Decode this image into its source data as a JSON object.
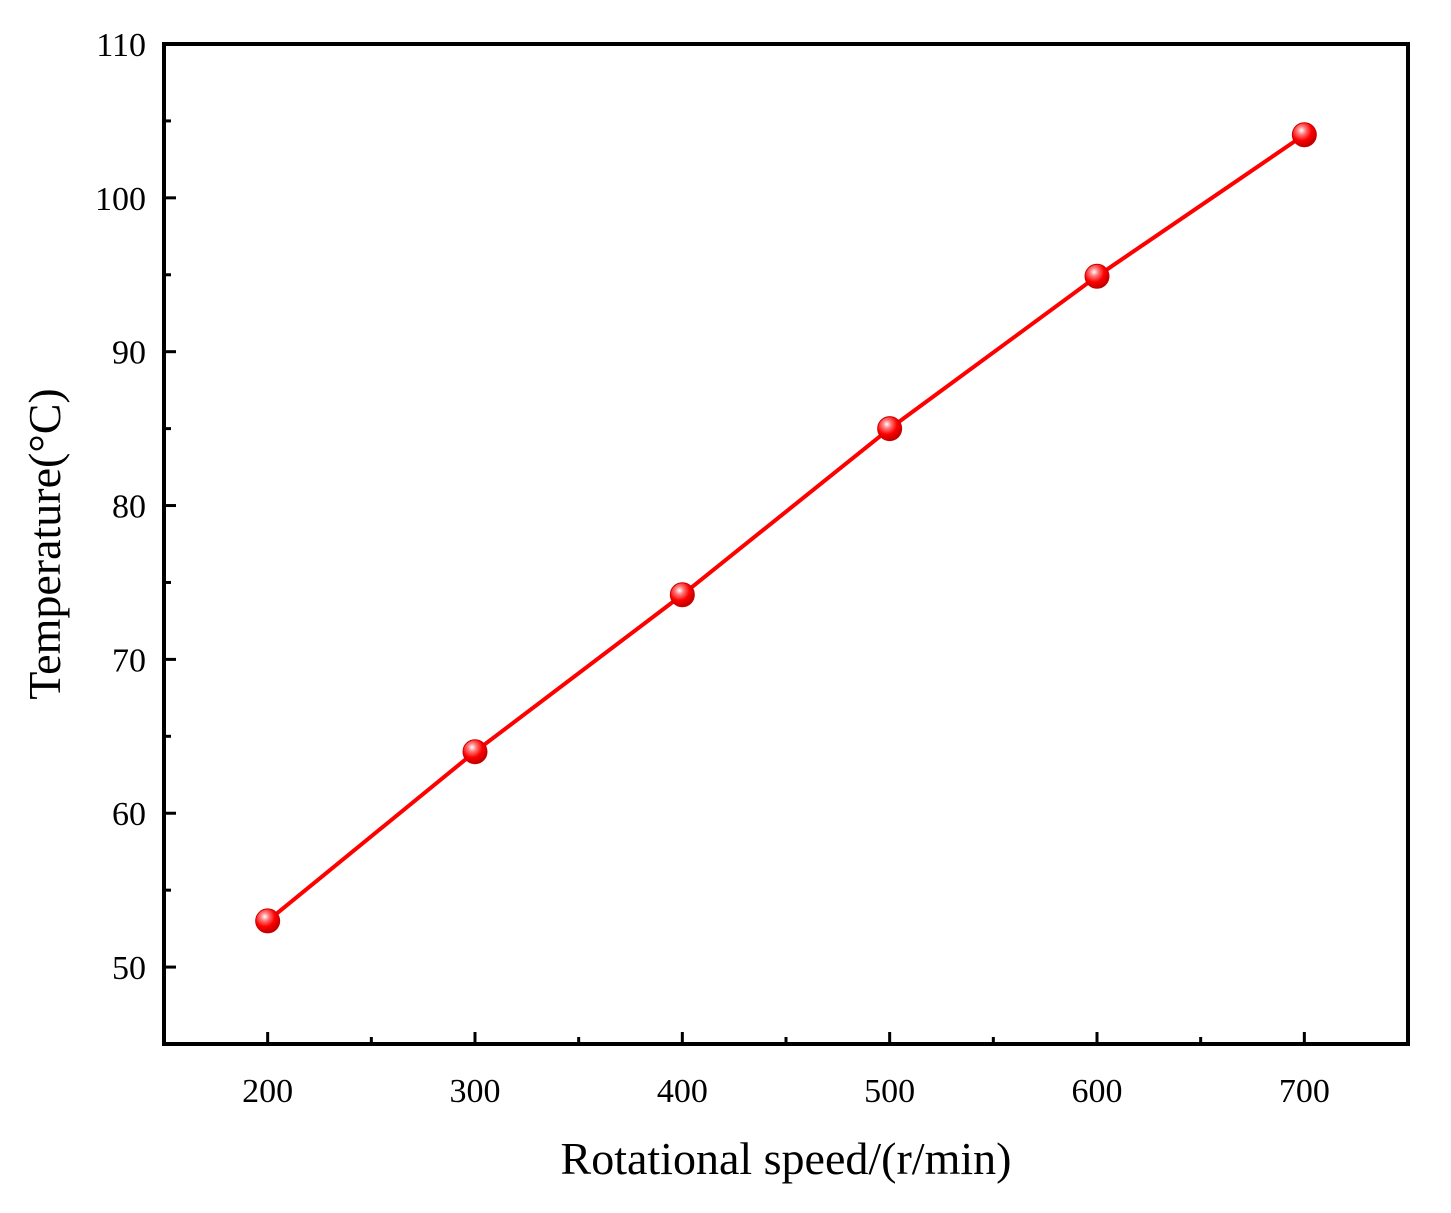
{
  "chart_data": {
    "type": "line",
    "title": "",
    "xlabel": "Rotational speed/(r/min)",
    "ylabel": "Temperature(°C)",
    "xlim": [
      150,
      750
    ],
    "ylim": [
      45,
      110
    ],
    "x_ticks": [
      200,
      300,
      400,
      500,
      600,
      700
    ],
    "x_minor_ticks": [
      250,
      350,
      450,
      550,
      650
    ],
    "y_ticks": [
      50,
      60,
      70,
      80,
      90,
      100,
      110
    ],
    "y_minor_ticks": [
      55,
      65,
      75,
      85,
      95,
      105
    ],
    "grid": false,
    "legend": "none",
    "series": [
      {
        "x": [
          200,
          300,
          400,
          500,
          600,
          700
        ],
        "values": [
          53,
          64,
          74.2,
          85,
          94.9,
          104.1
        ],
        "color": "#ff0000",
        "marker": "sphere"
      }
    ]
  }
}
